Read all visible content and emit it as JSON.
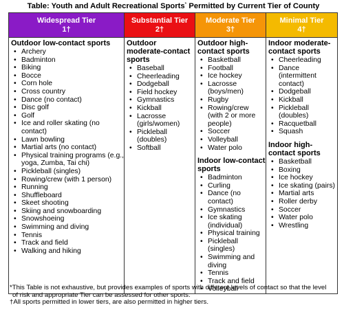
{
  "title": "Table: Youth and Adult Recreational Sports",
  "title_sup": "*",
  "title_rest": " Permitted by Current Tier of County",
  "colors": {
    "widespread": "#8a1bc6",
    "substantial": "#ea1014",
    "moderate": "#f59508",
    "minimal": "#f4ba00"
  },
  "tiers": [
    {
      "name": "Widespread Tier",
      "number": "1†",
      "sections": [
        {
          "title": "Outdoor low-contact sports",
          "items": [
            "Archery",
            "Badminton",
            "Biking",
            "Bocce",
            "Corn hole",
            "Cross country",
            "Dance (no contact)",
            "Disc golf",
            "Golf",
            "Ice and roller skating (no contact)",
            "Lawn bowling",
            "Martial arts (no contact)",
            "Physical training programs (e.g., yoga, Zumba, Tai chi)",
            "Pickleball (singles)",
            "Rowing/crew (with 1 person)",
            "Running",
            "Shuffleboard",
            "Skeet shooting",
            "Skiing and snowboarding",
            "Snowshoeing",
            "Swimming and diving",
            "Tennis",
            "Track and field",
            "Walking and hiking"
          ]
        }
      ]
    },
    {
      "name": "Substantial Tier",
      "number": "2†",
      "sections": [
        {
          "title": "Outdoor moderate-contact sports",
          "items": [
            "Baseball",
            "Cheerleading",
            "Dodgeball",
            "Field hockey",
            "Gymnastics",
            "Kickball",
            "Lacrosse (girls/women)",
            "Pickleball (doubles)",
            "Softball"
          ]
        }
      ]
    },
    {
      "name": "Moderate Tier",
      "number": "3†",
      "sections": [
        {
          "title": "Outdoor high-contact sports",
          "items": [
            "Basketball",
            "Football",
            "Ice hockey",
            "Lacrosse (boys/men)",
            "Rugby",
            "Rowing/crew (with 2 or more people)",
            "Soccer",
            "Volleyball",
            "Water polo"
          ]
        },
        {
          "title": "Indoor low-contact sports",
          "items": [
            "Badminton",
            "Curling",
            "Dance (no contact)",
            "Gymnastics",
            "Ice skating (individual)",
            "Physical training",
            "Pickleball (singles)",
            "Swimming and diving",
            "Tennis",
            "Track and field",
            "Volleyball"
          ]
        }
      ]
    },
    {
      "name": "Minimal Tier",
      "number": "4†",
      "sections": [
        {
          "title": "Indoor moderate-contact sports",
          "items": [
            "Cheerleading",
            "Dance (intermittent contact)",
            "Dodgeball",
            "Kickball",
            "Pickleball (doubles)",
            "Racquetball",
            "Squash"
          ]
        },
        {
          "title": "Indoor high-contact sports",
          "items": [
            "Basketball",
            "Boxing",
            "Ice hockey",
            "Ice skating (pairs)",
            "Martial arts",
            "Roller derby",
            "Soccer",
            "Water polo",
            "Wrestling"
          ]
        }
      ]
    }
  ],
  "footnotes": {
    "line1": "*This Table is not exhaustive, but provides examples of sports with different levels of contact so that the level",
    "line2": "of risk and appropriate Tier can be assessed for other sports.",
    "line3": "†All sports permitted in lower tiers, are also permitted in higher tiers."
  }
}
